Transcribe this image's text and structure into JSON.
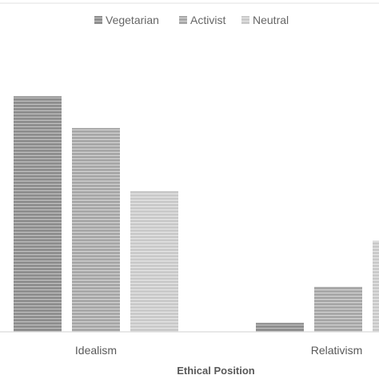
{
  "chart_data": {
    "type": "bar",
    "xlabel": "Ethical Position",
    "ylabel": "",
    "categories": [
      "Idealism",
      "Relativism"
    ],
    "series": [
      {
        "name": "Vegetarian",
        "values": [
          4.97,
          0.19
        ],
        "color": "#9e9e9e"
      },
      {
        "name": "Activist",
        "values": [
          4.3,
          0.95
        ],
        "color": "#b5b5b5"
      },
      {
        "name": "Neutral",
        "values": [
          2.97,
          1.92
        ],
        "color": "#d2d2d2"
      }
    ],
    "ylim": [
      0,
      7
    ],
    "grid": false,
    "legend": "top-center"
  }
}
